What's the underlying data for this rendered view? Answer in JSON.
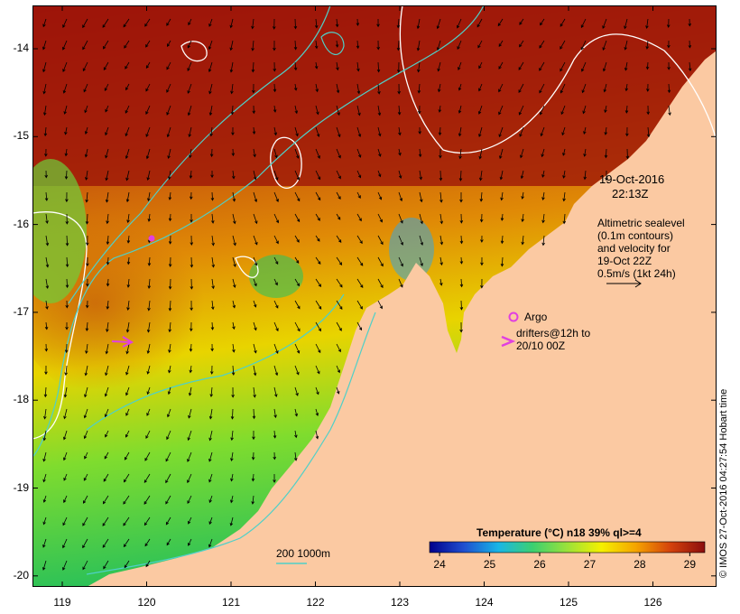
{
  "map": {
    "date": "19-Oct-2016",
    "time": "22:13Z",
    "info_lines": [
      "Altimetric sealevel",
      "(0.1m contours)",
      "and velocity for",
      "19-Oct 22Z",
      "0.5m/s (1kt 24h)"
    ],
    "argo_label": "Argo",
    "drifter_lines": [
      "drifters@12h to",
      "20/10 00Z"
    ],
    "depth_label": "200  1000m",
    "credit": "© IMOS 27-Oct-2016 04:27:54 Hobart time",
    "lon_ticks": [
      "119",
      "120",
      "121",
      "122",
      "123",
      "124",
      "125",
      "126"
    ],
    "lat_ticks": [
      "-14",
      "-15",
      "-16",
      "-17",
      "-18",
      "-19",
      "-20"
    ]
  },
  "legend": {
    "title": "Temperature (°C) n18 39% ql>=4",
    "ticks": [
      "24",
      "25",
      "26",
      "27",
      "28",
      "29"
    ],
    "range": [
      23.8,
      29.3
    ],
    "colors": [
      "#00008b",
      "#1f4fd0",
      "#19b6e6",
      "#3cd070",
      "#9be23a",
      "#f5f000",
      "#f5a300",
      "#d4420c",
      "#8b0d0d"
    ]
  },
  "colors": {
    "land": "#fbc9a2",
    "contour": "#ffffff",
    "isobath": "#4fd0c8",
    "argo": "#e040e0",
    "drifter": "#e040e0"
  }
}
